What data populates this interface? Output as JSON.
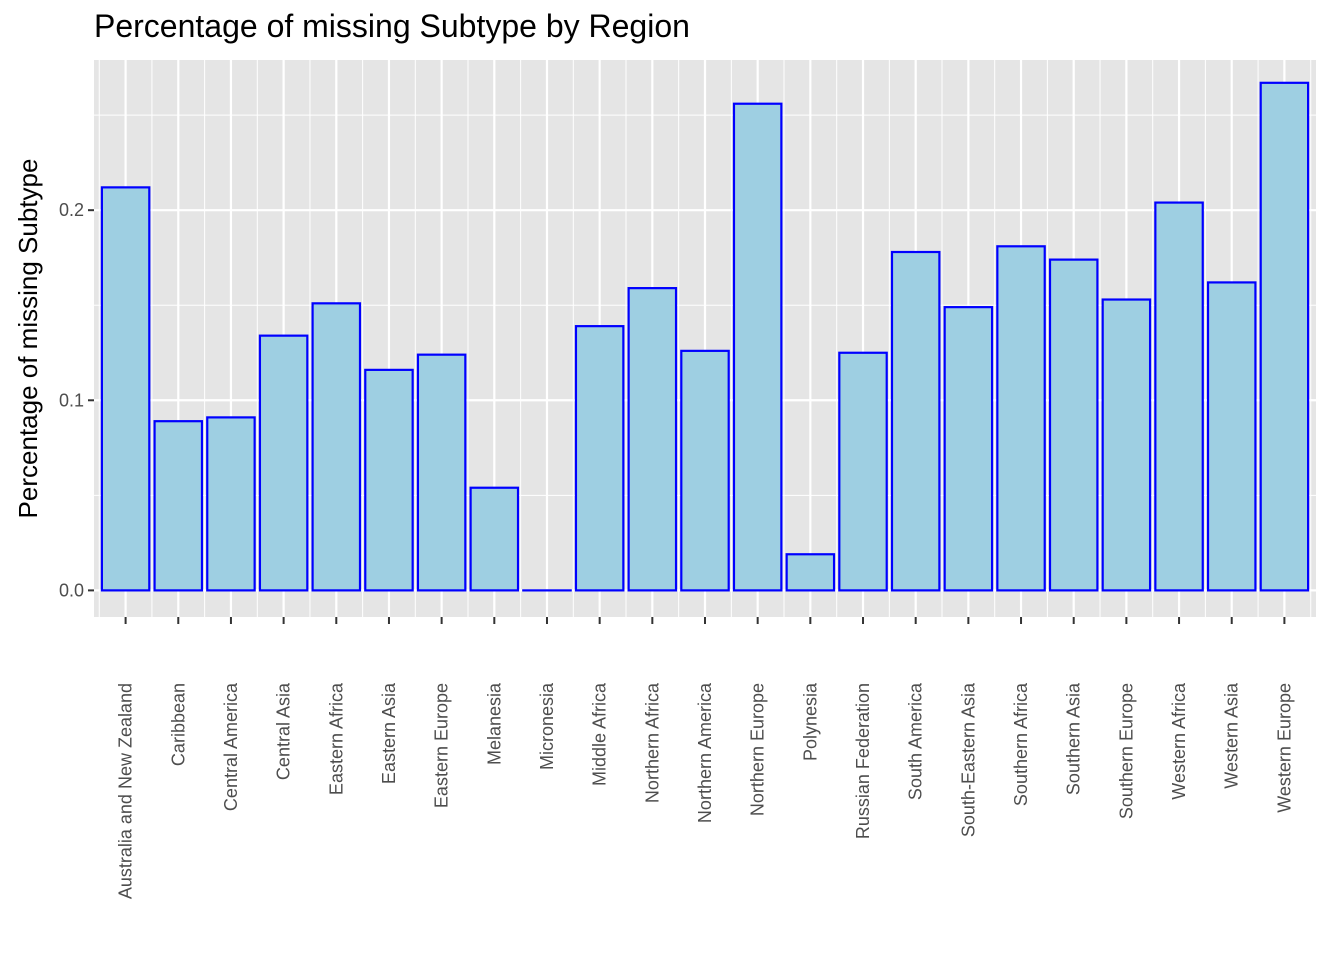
{
  "chart_data": {
    "type": "bar",
    "title": "Percentage of missing Subtype by Region",
    "xlabel": "",
    "ylabel": "Percentage of missing Subtype",
    "categories": [
      "Australia and New Zealand",
      "Caribbean",
      "Central America",
      "Central Asia",
      "Eastern Africa",
      "Eastern Asia",
      "Eastern Europe",
      "Melanesia",
      "Micronesia",
      "Middle Africa",
      "Northern Africa",
      "Northern America",
      "Northern Europe",
      "Polynesia",
      "Russian Federation",
      "South America",
      "South-Eastern Asia",
      "Southern Africa",
      "Southern Asia",
      "Southern Europe",
      "Western Africa",
      "Western Asia",
      "Western Europe"
    ],
    "values": [
      0.212,
      0.089,
      0.091,
      0.134,
      0.151,
      0.116,
      0.124,
      0.054,
      0.0,
      0.139,
      0.159,
      0.126,
      0.256,
      0.019,
      0.125,
      0.178,
      0.149,
      0.181,
      0.174,
      0.153,
      0.204,
      0.162,
      0.267
    ],
    "ylim": [
      -0.014,
      0.279
    ],
    "yticks": [
      0.0,
      0.1,
      0.2
    ],
    "ytick_labels": [
      "0.0",
      "0.1",
      "0.2"
    ],
    "grid": true,
    "colors": {
      "bar_fill": "#9ecfe2",
      "bar_stroke": "#0000ff",
      "panel": "#e5e5e5",
      "grid": "#ffffff"
    }
  }
}
